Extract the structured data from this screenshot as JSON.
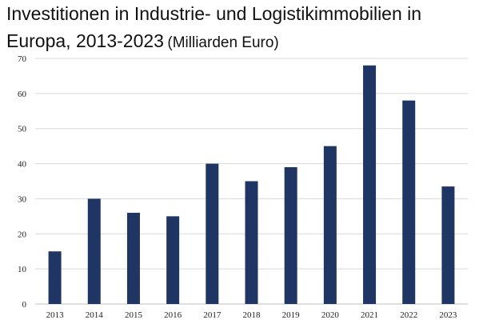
{
  "chart_data": {
    "type": "bar",
    "title": "Investitionen in Industrie- und Logistikimmobilien in Europa, 2013-2023",
    "unit": "(Milliarden Euro)",
    "categories": [
      "2013",
      "2014",
      "2015",
      "2016",
      "2017",
      "2018",
      "2019",
      "2020",
      "2021",
      "2022",
      "2023"
    ],
    "values": [
      15,
      30,
      26,
      25,
      40,
      35,
      39,
      45,
      68,
      58,
      33.5
    ],
    "ylim": [
      0,
      70
    ],
    "yticks": [
      0,
      10,
      20,
      30,
      40,
      50,
      60,
      70
    ],
    "grid": true,
    "colors": {
      "bar": "#1f3664",
      "grid": "#d9d9d9"
    }
  }
}
